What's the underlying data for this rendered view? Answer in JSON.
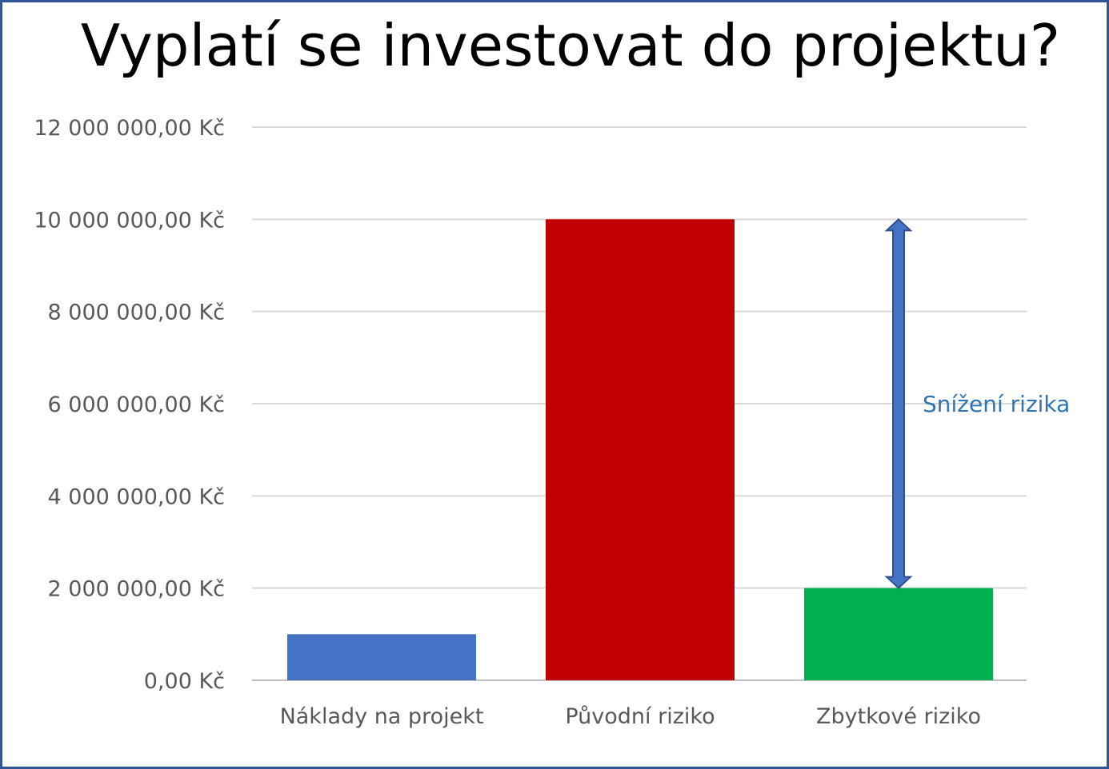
{
  "chart_data": {
    "type": "bar",
    "title": "Vyplatí se investovat do projektu?",
    "categories": [
      "Náklady na projekt",
      "Původní riziko",
      "Zbytkové riziko"
    ],
    "values": [
      1000000,
      10000000,
      2000000
    ],
    "bar_colors": [
      "#4472c4",
      "#c00000",
      "#00b050"
    ],
    "ylim": [
      0,
      12000000
    ],
    "y_ticks": [
      {
        "value": 0,
        "label": "0,00 Kč"
      },
      {
        "value": 2000000,
        "label": "2 000 000,00 Kč"
      },
      {
        "value": 4000000,
        "label": "4 000 000,00 Kč"
      },
      {
        "value": 6000000,
        "label": "6 000 000,00 Kč"
      },
      {
        "value": 8000000,
        "label": "8 000 000,00 Kč"
      },
      {
        "value": 10000000,
        "label": "10 000 000,00 Kč"
      },
      {
        "value": 12000000,
        "label": "12 000 000,00 Kč"
      }
    ],
    "grid": true,
    "legend": "none",
    "annotation": {
      "label": "Snížení rizika",
      "from_value": 10000000,
      "to_value": 2000000,
      "category": "Zbytkové riziko",
      "color": "#4472c4",
      "label_color": "#2e75b6"
    }
  }
}
